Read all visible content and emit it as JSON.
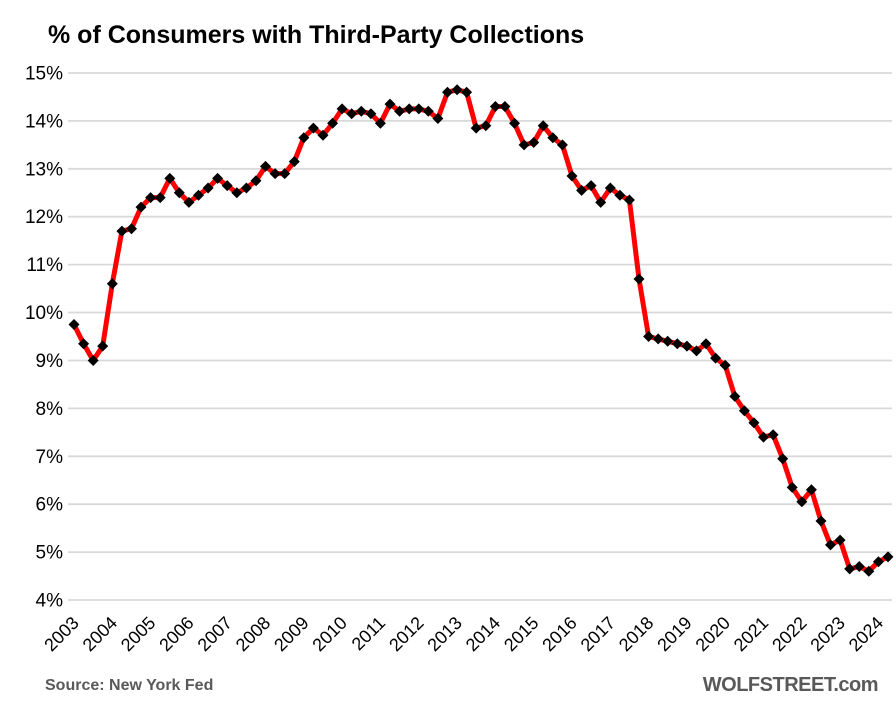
{
  "title": "% of Consumers with Third-Party Collections",
  "footer": {
    "source": "Source: New York Fed",
    "brand": "WOLFSTREET.com"
  },
  "colors": {
    "line": "#FF0000",
    "marker": "#000000",
    "grid": "#D9D9D9",
    "text": "#000000",
    "footer_text": "#595959"
  },
  "chart_data": {
    "type": "line",
    "title": "% of Consumers with Third-Party Collections",
    "xlabel": "",
    "ylabel": "",
    "legend": "none",
    "grid": "horizontal",
    "marker": "diamond",
    "ylim": [
      4,
      15
    ],
    "y_ticks": [
      {
        "value": 15,
        "label": "15%"
      },
      {
        "value": 14,
        "label": "14%"
      },
      {
        "value": 13,
        "label": "13%"
      },
      {
        "value": 12,
        "label": "12%"
      },
      {
        "value": 11,
        "label": "11%"
      },
      {
        "value": 10,
        "label": "10%"
      },
      {
        "value": 9,
        "label": "9%"
      },
      {
        "value": 8,
        "label": "8%"
      },
      {
        "value": 7,
        "label": "7%"
      },
      {
        "value": 6,
        "label": "6%"
      },
      {
        "value": 5,
        "label": "5%"
      },
      {
        "value": 4,
        "label": "4%"
      }
    ],
    "x_ticks": [
      "2003",
      "2004",
      "2005",
      "2006",
      "2007",
      "2008",
      "2009",
      "2010",
      "2011",
      "2012",
      "2013",
      "2014",
      "2015",
      "2016",
      "2017",
      "2018",
      "2019",
      "2020",
      "2021",
      "2022",
      "2023",
      "2024"
    ],
    "categories": [
      "2003 Q1",
      "2003 Q2",
      "2003 Q3",
      "2003 Q4",
      "2004 Q1",
      "2004 Q2",
      "2004 Q3",
      "2004 Q4",
      "2005 Q1",
      "2005 Q2",
      "2005 Q3",
      "2005 Q4",
      "2006 Q1",
      "2006 Q2",
      "2006 Q3",
      "2006 Q4",
      "2007 Q1",
      "2007 Q2",
      "2007 Q3",
      "2007 Q4",
      "2008 Q1",
      "2008 Q2",
      "2008 Q3",
      "2008 Q4",
      "2009 Q1",
      "2009 Q2",
      "2009 Q3",
      "2009 Q4",
      "2010 Q1",
      "2010 Q2",
      "2010 Q3",
      "2010 Q4",
      "2011 Q1",
      "2011 Q2",
      "2011 Q3",
      "2011 Q4",
      "2012 Q1",
      "2012 Q2",
      "2012 Q3",
      "2012 Q4",
      "2013 Q1",
      "2013 Q2",
      "2013 Q3",
      "2013 Q4",
      "2014 Q1",
      "2014 Q2",
      "2014 Q3",
      "2014 Q4",
      "2015 Q1",
      "2015 Q2",
      "2015 Q3",
      "2015 Q4",
      "2016 Q1",
      "2016 Q2",
      "2016 Q3",
      "2016 Q4",
      "2017 Q1",
      "2017 Q2",
      "2017 Q3",
      "2017 Q4",
      "2018 Q1",
      "2018 Q2",
      "2018 Q3",
      "2018 Q4",
      "2019 Q1",
      "2019 Q2",
      "2019 Q3",
      "2019 Q4",
      "2020 Q1",
      "2020 Q2",
      "2020 Q3",
      "2020 Q4",
      "2021 Q1",
      "2021 Q2",
      "2021 Q3",
      "2021 Q4",
      "2022 Q1",
      "2022 Q2",
      "2022 Q3",
      "2022 Q4",
      "2023 Q1",
      "2023 Q2",
      "2023 Q3",
      "2023 Q4",
      "2024 Q1",
      "2024 Q2"
    ],
    "values": [
      9.75,
      9.35,
      9.0,
      9.3,
      10.6,
      11.7,
      11.75,
      12.2,
      12.4,
      12.4,
      12.8,
      12.5,
      12.3,
      12.45,
      12.6,
      12.8,
      12.65,
      12.5,
      12.6,
      12.75,
      13.05,
      12.9,
      12.9,
      13.15,
      13.65,
      13.85,
      13.7,
      13.95,
      14.25,
      14.15,
      14.2,
      14.15,
      13.95,
      14.35,
      14.2,
      14.25,
      14.25,
      14.2,
      14.05,
      14.6,
      14.65,
      14.6,
      13.85,
      13.9,
      14.3,
      14.3,
      13.95,
      13.5,
      13.55,
      13.9,
      13.65,
      13.5,
      12.85,
      12.55,
      12.65,
      12.3,
      12.6,
      12.45,
      12.35,
      10.7,
      9.5,
      9.45,
      9.4,
      9.35,
      9.3,
      9.2,
      9.35,
      9.05,
      8.9,
      8.25,
      7.95,
      7.7,
      7.4,
      7.45,
      6.95,
      6.35,
      6.05,
      6.3,
      5.65,
      5.15,
      5.25,
      4.65,
      4.7,
      4.6,
      4.8,
      4.9
    ]
  }
}
